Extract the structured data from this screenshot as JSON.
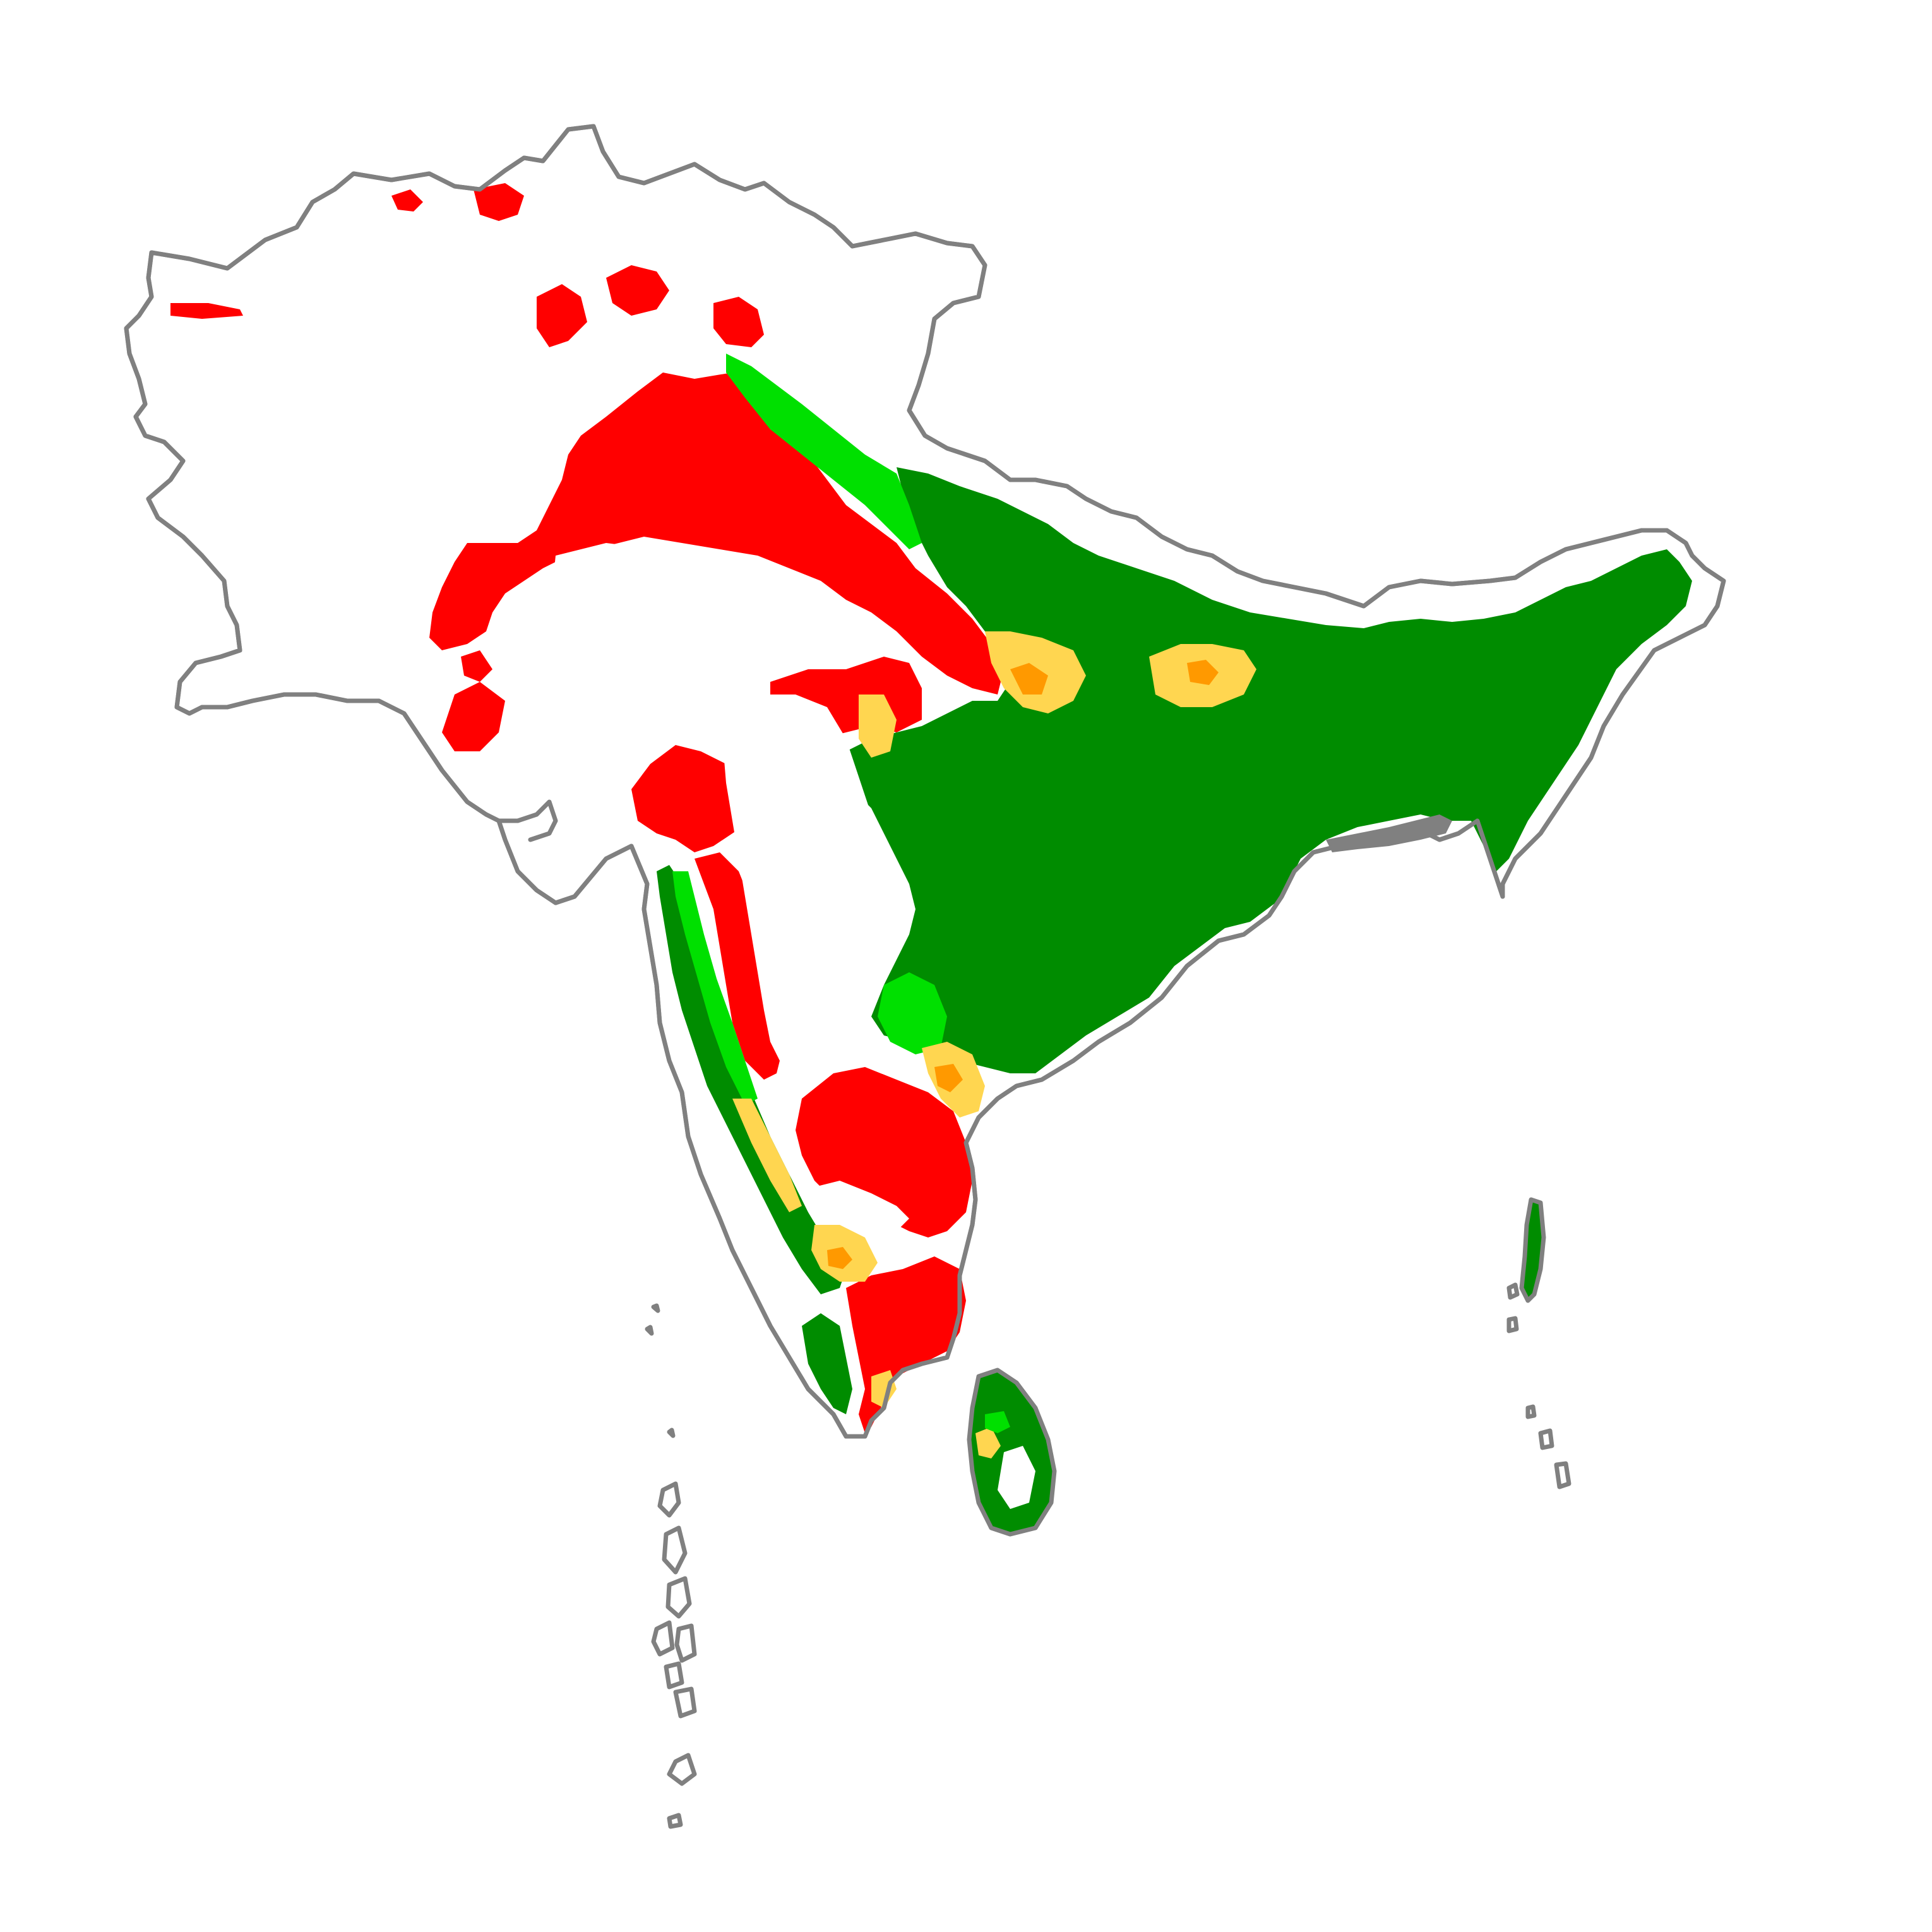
{
  "map": {
    "region": "South Asia",
    "background_color": "#ffffff",
    "boundary_color": "#808080",
    "classes": [
      {
        "id": "class-1",
        "color": "#008c00"
      },
      {
        "id": "class-2",
        "color": "#00e000"
      },
      {
        "id": "class-3",
        "color": "#ffd650"
      },
      {
        "id": "class-4",
        "color": "#ff9900"
      },
      {
        "id": "class-5",
        "color": "#ff0000"
      }
    ]
  }
}
